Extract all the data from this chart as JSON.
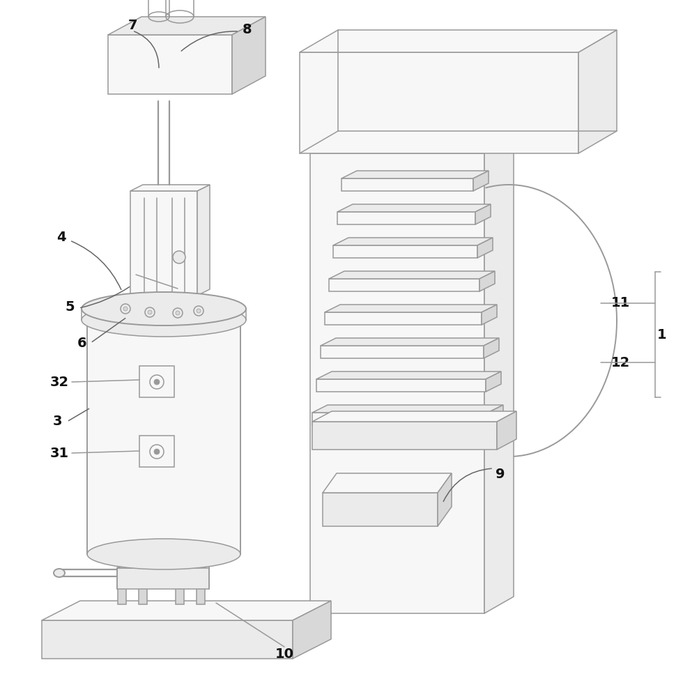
{
  "bg": "#ffffff",
  "lc": "#999999",
  "lc_dark": "#666666",
  "lw": 1.1,
  "fill_light": "#f7f7f7",
  "fill_mid": "#ebebeb",
  "fill_dark": "#d8d8d8"
}
